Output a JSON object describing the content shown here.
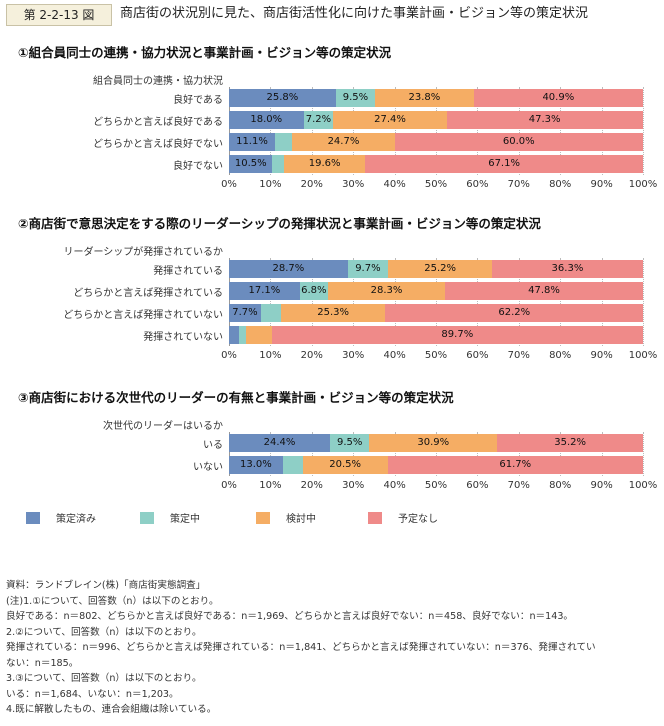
{
  "figure": {
    "number": "第 2-2-13 図",
    "title": "商店街の状況別に見た、商店街活性化に向けた事業計画・ビジョン等の策定状況"
  },
  "colors": {
    "策定済み": "#6b8cbe",
    "策定中": "#8ecfc6",
    "検討中": "#f5ad64",
    "予定なし": "#ef8a89"
  },
  "legend": [
    "策定済み",
    "策定中",
    "検討中",
    "予定なし"
  ],
  "x_ticks": [
    "0%",
    "10%",
    "20%",
    "30%",
    "40%",
    "50%",
    "60%",
    "70%",
    "80%",
    "90%",
    "100%"
  ],
  "chart_data": [
    {
      "type": "bar",
      "orientation": "horizontal",
      "stacked": true,
      "title": "①組合員同士の連携・協力状況と事業計画・ビジョン等の策定状況",
      "group_label": "組合員同士の連携・協力状況",
      "categories": [
        "良好である",
        "どちらかと言えば良好である",
        "どちらかと言えば良好でない",
        "良好でない"
      ],
      "xlim": [
        0,
        100
      ],
      "series": [
        {
          "name": "策定済み",
          "values": [
            25.8,
            18.0,
            11.1,
            10.5
          ]
        },
        {
          "name": "策定中",
          "values": [
            9.5,
            7.2,
            4.2,
            2.8
          ]
        },
        {
          "name": "検討中",
          "values": [
            23.8,
            27.4,
            24.7,
            19.6
          ]
        },
        {
          "name": "予定なし",
          "values": [
            40.9,
            47.3,
            60.0,
            67.1
          ]
        }
      ],
      "data_labels": [
        [
          "25.8%",
          "9.5%",
          "23.8%",
          "40.9%"
        ],
        [
          "18.0%",
          "7.2%",
          "27.4%",
          "47.3%"
        ],
        [
          "11.1%",
          "",
          "24.7%",
          "60.0%"
        ],
        [
          "10.5%",
          "",
          "19.6%",
          "67.1%"
        ]
      ]
    },
    {
      "type": "bar",
      "orientation": "horizontal",
      "stacked": true,
      "title": "②商店街で意思決定をする際のリーダーシップの発揮状況と事業計画・ビジョン等の策定状況",
      "group_label": "リーダーシップが発揮されているか",
      "categories": [
        "発揮されている",
        "どちらかと言えば発揮されている",
        "どちらかと言えば発揮されていない",
        "発揮されていない"
      ],
      "xlim": [
        0,
        100
      ],
      "series": [
        {
          "name": "策定済み",
          "values": [
            28.7,
            17.1,
            7.7,
            2.5
          ]
        },
        {
          "name": "策定中",
          "values": [
            9.7,
            6.8,
            4.8,
            1.5
          ]
        },
        {
          "name": "検討中",
          "values": [
            25.2,
            28.3,
            25.3,
            6.3
          ]
        },
        {
          "name": "予定なし",
          "values": [
            36.3,
            47.8,
            62.2,
            89.7
          ]
        }
      ],
      "data_labels": [
        [
          "28.7%",
          "9.7%",
          "25.2%",
          "36.3%"
        ],
        [
          "17.1%",
          "6.8%",
          "28.3%",
          "47.8%"
        ],
        [
          "7.7%",
          "",
          "25.3%",
          "62.2%"
        ],
        [
          "",
          "",
          "",
          "89.7%"
        ]
      ]
    },
    {
      "type": "bar",
      "orientation": "horizontal",
      "stacked": true,
      "title": "③商店街における次世代のリーダーの有無と事業計画・ビジョン等の策定状況",
      "group_label": "次世代のリーダーはいるか",
      "categories": [
        "いる",
        "いない"
      ],
      "xlim": [
        0,
        100
      ],
      "series": [
        {
          "name": "策定済み",
          "values": [
            24.4,
            13.0
          ]
        },
        {
          "name": "策定中",
          "values": [
            9.5,
            4.8
          ]
        },
        {
          "name": "検討中",
          "values": [
            30.9,
            20.5
          ]
        },
        {
          "name": "予定なし",
          "values": [
            35.2,
            61.7
          ]
        }
      ],
      "data_labels": [
        [
          "24.4%",
          "9.5%",
          "30.9%",
          "35.2%"
        ],
        [
          "13.0%",
          "",
          "20.5%",
          "61.7%"
        ]
      ]
    }
  ],
  "notes": [
    "資料：ランドブレイン(株)「商店街実態調査」",
    "(注)1.①について、回答数（n）は以下のとおり。",
    "良好である：n＝802、どちらかと言えば良好である：n＝1,969、どちらかと言えば良好でない：n＝458、良好でない：n＝143。",
    "2.②について、回答数（n）は以下のとおり。",
    "発揮されている：n＝996、どちらかと言えば発揮されている：n＝1,841、どちらかと言えば発揮されていない：n＝376、発揮されてい",
    "ない：n＝185。",
    "3.③について、回答数（n）は以下のとおり。",
    "いる：n＝1,684、いない：n＝1,203。",
    "4.既に解散したもの、連合会組織は除いている。"
  ]
}
